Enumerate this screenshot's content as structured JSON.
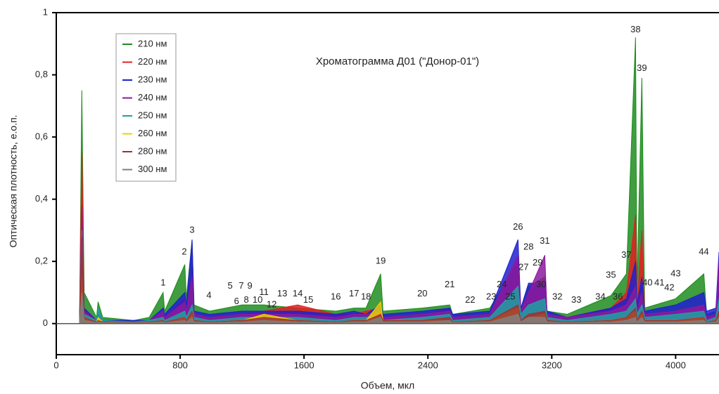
{
  "chart_data": {
    "type": "area",
    "title": "Хроматограмма Д01 (\"Донор-01\")",
    "x_label": "Объем, мкл",
    "y_label": "Оптическая плотность, е.о.п.",
    "legend": "upper left",
    "grid": false,
    "xlim": [
      0,
      4280
    ],
    "ylim": [
      -0.1,
      1
    ],
    "xticks": [
      0,
      800,
      1600,
      2400,
      3200,
      4000
    ],
    "yticks": [
      0,
      {
        "value": 0.2,
        "label": "0,2"
      },
      {
        "value": 0.4,
        "label": "0,4"
      },
      {
        "value": 0.6,
        "label": "0,6"
      },
      {
        "value": 0.8,
        "label": "0,8"
      },
      1
    ],
    "x": [
      0,
      150,
      165,
      180,
      260,
      270,
      300,
      500,
      600,
      690,
      700,
      830,
      840,
      877,
      890,
      990,
      1200,
      1341,
      1559,
      1805,
      1923,
      2000,
      2095,
      2110,
      2364,
      2541,
      2560,
      2800,
      2982,
      3000,
      3050,
      3155,
      3170,
      3300,
      3582,
      3682,
      3741,
      3750,
      3782,
      3800,
      4000,
      4182,
      4200,
      4260,
      4280
    ],
    "series": [
      {
        "name": "210 нм",
        "color": "#1e8c1e",
        "values": [
          0,
          0,
          0.75,
          0.1,
          0.02,
          0.07,
          0.02,
          0.01,
          0.02,
          0.1,
          0.04,
          0.19,
          0.08,
          0.27,
          0.06,
          0.04,
          0.06,
          0.06,
          0.05,
          0.04,
          0.05,
          0.05,
          0.16,
          0.04,
          0.05,
          0.06,
          0.03,
          0.05,
          0.2,
          0.05,
          0.12,
          0.15,
          0.04,
          0.03,
          0.09,
          0.16,
          0.92,
          0.1,
          0.79,
          0.05,
          0.08,
          0.16,
          0.03,
          0.04,
          0.2
        ]
      },
      {
        "name": "220 нм",
        "color": "#e02020",
        "values": [
          0,
          0,
          0.55,
          0.05,
          0.01,
          0.02,
          0.01,
          0.005,
          0.01,
          0.04,
          0.02,
          0.08,
          0.04,
          0.18,
          0.03,
          0.02,
          0.03,
          0.04,
          0.06,
          0.03,
          0.03,
          0.04,
          0.05,
          0.02,
          0.03,
          0.05,
          0.02,
          0.03,
          0.15,
          0.03,
          0.1,
          0.1,
          0.03,
          0.02,
          0.05,
          0.1,
          0.35,
          0.05,
          0.3,
          0.03,
          0.04,
          0.05,
          0.02,
          0.03,
          0.1
        ]
      },
      {
        "name": "230 нм",
        "color": "#2020d0",
        "values": [
          0,
          0,
          0.34,
          0.05,
          0.01,
          0.03,
          0.01,
          0.01,
          0.01,
          0.05,
          0.03,
          0.1,
          0.06,
          0.27,
          0.04,
          0.03,
          0.04,
          0.04,
          0.04,
          0.03,
          0.04,
          0.03,
          0.06,
          0.03,
          0.04,
          0.05,
          0.03,
          0.04,
          0.27,
          0.05,
          0.13,
          0.13,
          0.04,
          0.02,
          0.05,
          0.08,
          0.2,
          0.06,
          0.15,
          0.04,
          0.06,
          0.1,
          0.04,
          0.05,
          0.23
        ]
      },
      {
        "name": "240 нм",
        "color": "#8c1a9c",
        "values": [
          0,
          0,
          0.38,
          0.04,
          0.01,
          0.02,
          0.01,
          0.005,
          0.01,
          0.04,
          0.02,
          0.07,
          0.04,
          0.15,
          0.03,
          0.02,
          0.03,
          0.03,
          0.03,
          0.02,
          0.03,
          0.03,
          0.04,
          0.02,
          0.03,
          0.04,
          0.02,
          0.03,
          0.22,
          0.04,
          0.1,
          0.22,
          0.03,
          0.02,
          0.04,
          0.06,
          0.12,
          0.04,
          0.1,
          0.03,
          0.04,
          0.06,
          0.02,
          0.03,
          0.2
        ]
      },
      {
        "name": "250 нм",
        "color": "#20a0a0",
        "values": [
          0,
          0,
          0.3,
          0.03,
          0.01,
          0.05,
          0.01,
          0.005,
          0.01,
          0.02,
          0.01,
          0.04,
          0.02,
          0.06,
          0.02,
          0.01,
          0.02,
          0.02,
          0.02,
          0.01,
          0.02,
          0.02,
          0.03,
          0.01,
          0.02,
          0.03,
          0.01,
          0.02,
          0.12,
          0.03,
          0.06,
          0.08,
          0.02,
          0.01,
          0.03,
          0.04,
          0.08,
          0.03,
          0.06,
          0.02,
          0.03,
          0.04,
          0.01,
          0.02,
          0.08
        ]
      },
      {
        "name": "260 нм",
        "color": "#f0d000",
        "values": [
          0,
          0,
          0.15,
          0.02,
          0.005,
          0.02,
          0.005,
          0.003,
          0.005,
          0.01,
          0.005,
          0.02,
          0.01,
          0.03,
          0.01,
          0.005,
          0.01,
          0.03,
          0.01,
          0.005,
          0.01,
          0.01,
          0.07,
          0.01,
          0.01,
          0.01,
          0.005,
          0.01,
          0.05,
          0.01,
          0.02,
          0.03,
          0.01,
          0.005,
          0.01,
          0.02,
          0.04,
          0.01,
          0.03,
          0.01,
          0.01,
          0.02,
          0.005,
          0.01,
          0.03
        ]
      },
      {
        "name": "280 нм",
        "color": "#a03030",
        "values": [
          0,
          0,
          0.28,
          0.02,
          0.005,
          0.01,
          0.005,
          0.003,
          0.005,
          0.01,
          0.005,
          0.02,
          0.01,
          0.04,
          0.01,
          0.005,
          0.01,
          0.02,
          0.01,
          0.005,
          0.01,
          0.01,
          0.03,
          0.01,
          0.01,
          0.02,
          0.005,
          0.01,
          0.06,
          0.01,
          0.03,
          0.04,
          0.01,
          0.005,
          0.01,
          0.02,
          0.05,
          0.01,
          0.04,
          0.01,
          0.01,
          0.02,
          0.005,
          0.01,
          0.04
        ]
      },
      {
        "name": "300 нм",
        "color": "#808080",
        "values": [
          0,
          0,
          0.1,
          0.01,
          0.003,
          0.005,
          0.003,
          0.002,
          0.003,
          0.005,
          0.003,
          0.01,
          0.005,
          0.02,
          0.005,
          0.003,
          0.005,
          0.01,
          0.005,
          0.003,
          0.005,
          0.005,
          0.02,
          0.005,
          0.005,
          0.01,
          0.003,
          0.005,
          0.03,
          0.005,
          0.02,
          0.02,
          0.005,
          0.003,
          0.005,
          0.01,
          0.02,
          0.005,
          0.02,
          0.005,
          0.005,
          0.01,
          0.003,
          0.005,
          0.02
        ]
      }
    ],
    "peak_labels": [
      {
        "label": "1",
        "x": 690,
        "y": 0.13
      },
      {
        "label": "2",
        "x": 827,
        "y": 0.23
      },
      {
        "label": "3",
        "x": 877,
        "y": 0.3
      },
      {
        "label": "4",
        "x": 986,
        "y": 0.09
      },
      {
        "label": "5",
        "x": 1123,
        "y": 0.12
      },
      {
        "label": "6",
        "x": 1164,
        "y": 0.07
      },
      {
        "label": "7",
        "x": 1195,
        "y": 0.12
      },
      {
        "label": "8",
        "x": 1227,
        "y": 0.075
      },
      {
        "label": "9",
        "x": 1250,
        "y": 0.12
      },
      {
        "label": "10",
        "x": 1300,
        "y": 0.075
      },
      {
        "label": "11",
        "x": 1341,
        "y": 0.1
      },
      {
        "label": "12",
        "x": 1391,
        "y": 0.06
      },
      {
        "label": "13",
        "x": 1459,
        "y": 0.095
      },
      {
        "label": "14",
        "x": 1559,
        "y": 0.095
      },
      {
        "label": "15",
        "x": 1627,
        "y": 0.075
      },
      {
        "label": "16",
        "x": 1805,
        "y": 0.085
      },
      {
        "label": "17",
        "x": 1923,
        "y": 0.095
      },
      {
        "label": "18",
        "x": 2000,
        "y": 0.085
      },
      {
        "label": "19",
        "x": 2095,
        "y": 0.2
      },
      {
        "label": "20",
        "x": 2364,
        "y": 0.095
      },
      {
        "label": "21",
        "x": 2541,
        "y": 0.125
      },
      {
        "label": "22",
        "x": 2673,
        "y": 0.075
      },
      {
        "label": "23",
        "x": 2809,
        "y": 0.085
      },
      {
        "label": "24",
        "x": 2877,
        "y": 0.125
      },
      {
        "label": "25",
        "x": 2932,
        "y": 0.085
      },
      {
        "label": "26",
        "x": 2982,
        "y": 0.31
      },
      {
        "label": "27",
        "x": 3018,
        "y": 0.18
      },
      {
        "label": "28",
        "x": 3050,
        "y": 0.245
      },
      {
        "label": "29",
        "x": 3109,
        "y": 0.195
      },
      {
        "label": "30",
        "x": 3132,
        "y": 0.125
      },
      {
        "label": "31",
        "x": 3155,
        "y": 0.265
      },
      {
        "label": "32",
        "x": 3236,
        "y": 0.085
      },
      {
        "label": "33",
        "x": 3359,
        "y": 0.075
      },
      {
        "label": "34",
        "x": 3514,
        "y": 0.085
      },
      {
        "label": "35",
        "x": 3582,
        "y": 0.155
      },
      {
        "label": "36",
        "x": 3627,
        "y": 0.085
      },
      {
        "label": "37",
        "x": 3682,
        "y": 0.22
      },
      {
        "label": "38",
        "x": 3741,
        "y": 0.945
      },
      {
        "label": "39",
        "x": 3782,
        "y": 0.82
      },
      {
        "label": "40",
        "x": 3818,
        "y": 0.13
      },
      {
        "label": "41",
        "x": 3895,
        "y": 0.13
      },
      {
        "label": "42",
        "x": 3959,
        "y": 0.115
      },
      {
        "label": "43",
        "x": 4000,
        "y": 0.16
      },
      {
        "label": "44",
        "x": 4182,
        "y": 0.23
      }
    ]
  }
}
